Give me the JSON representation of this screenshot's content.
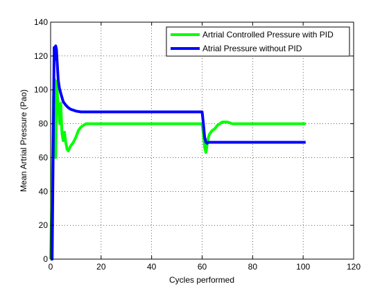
{
  "chart_data": {
    "type": "line",
    "title": "",
    "xlabel": "Cycles performed",
    "ylabel": "Mean Artrial Pressure (Pao)",
    "xlim": [
      0,
      120
    ],
    "ylim": [
      0,
      140
    ],
    "xticks": [
      0,
      20,
      40,
      60,
      80,
      100,
      120
    ],
    "yticks": [
      0,
      20,
      40,
      60,
      80,
      100,
      120,
      140
    ],
    "grid": true,
    "legend_position": "top-right",
    "series": [
      {
        "name": "Artrial Controlled Pressure with PID",
        "color": "#00ff00",
        "x": [
          0,
          0.6,
          1.2,
          1.6,
          2.0,
          2.4,
          2.8,
          3.2,
          3.6,
          4.0,
          4.5,
          5.0,
          5.5,
          6.0,
          6.5,
          7.0,
          8,
          9,
          10,
          11,
          12,
          13,
          14,
          15,
          16,
          20,
          30,
          40,
          50,
          60,
          60.5,
          61,
          61.5,
          62,
          62.5,
          63,
          64,
          65,
          66,
          67,
          68,
          69,
          70,
          72,
          75,
          80,
          90,
          101
        ],
        "y": [
          0,
          45,
          100,
          106,
          60,
          105,
          94,
          88,
          80,
          92,
          74,
          70,
          75,
          69,
          65,
          64,
          67,
          69,
          72,
          76,
          78,
          79,
          80,
          80,
          80,
          80,
          80,
          80,
          80,
          80,
          74,
          66,
          63,
          68,
          72,
          74,
          76,
          77,
          79,
          80,
          81,
          81,
          81,
          80,
          80,
          80,
          80,
          80
        ]
      },
      {
        "name": "Atrial Pressure without PID",
        "color": "#0000ff",
        "x": [
          0,
          0.6,
          1.0,
          1.4,
          1.7,
          2.0,
          2.3,
          2.6,
          3.0,
          3.5,
          4.0,
          5,
          6,
          7,
          8,
          9,
          10,
          12,
          15,
          20,
          30,
          40,
          50,
          60,
          60.5,
          61,
          61.5,
          62,
          62.5,
          63,
          64,
          65,
          70,
          80,
          90,
          101
        ],
        "y": [
          0,
          0,
          60,
          125,
          118,
          126,
          124,
          116,
          106,
          101,
          98,
          93,
          91,
          89.5,
          88.5,
          88,
          87.5,
          87,
          87,
          87,
          87,
          87,
          87,
          87,
          80,
          72,
          69,
          68.5,
          69,
          69,
          69,
          69,
          69,
          69,
          69,
          69
        ]
      }
    ]
  }
}
